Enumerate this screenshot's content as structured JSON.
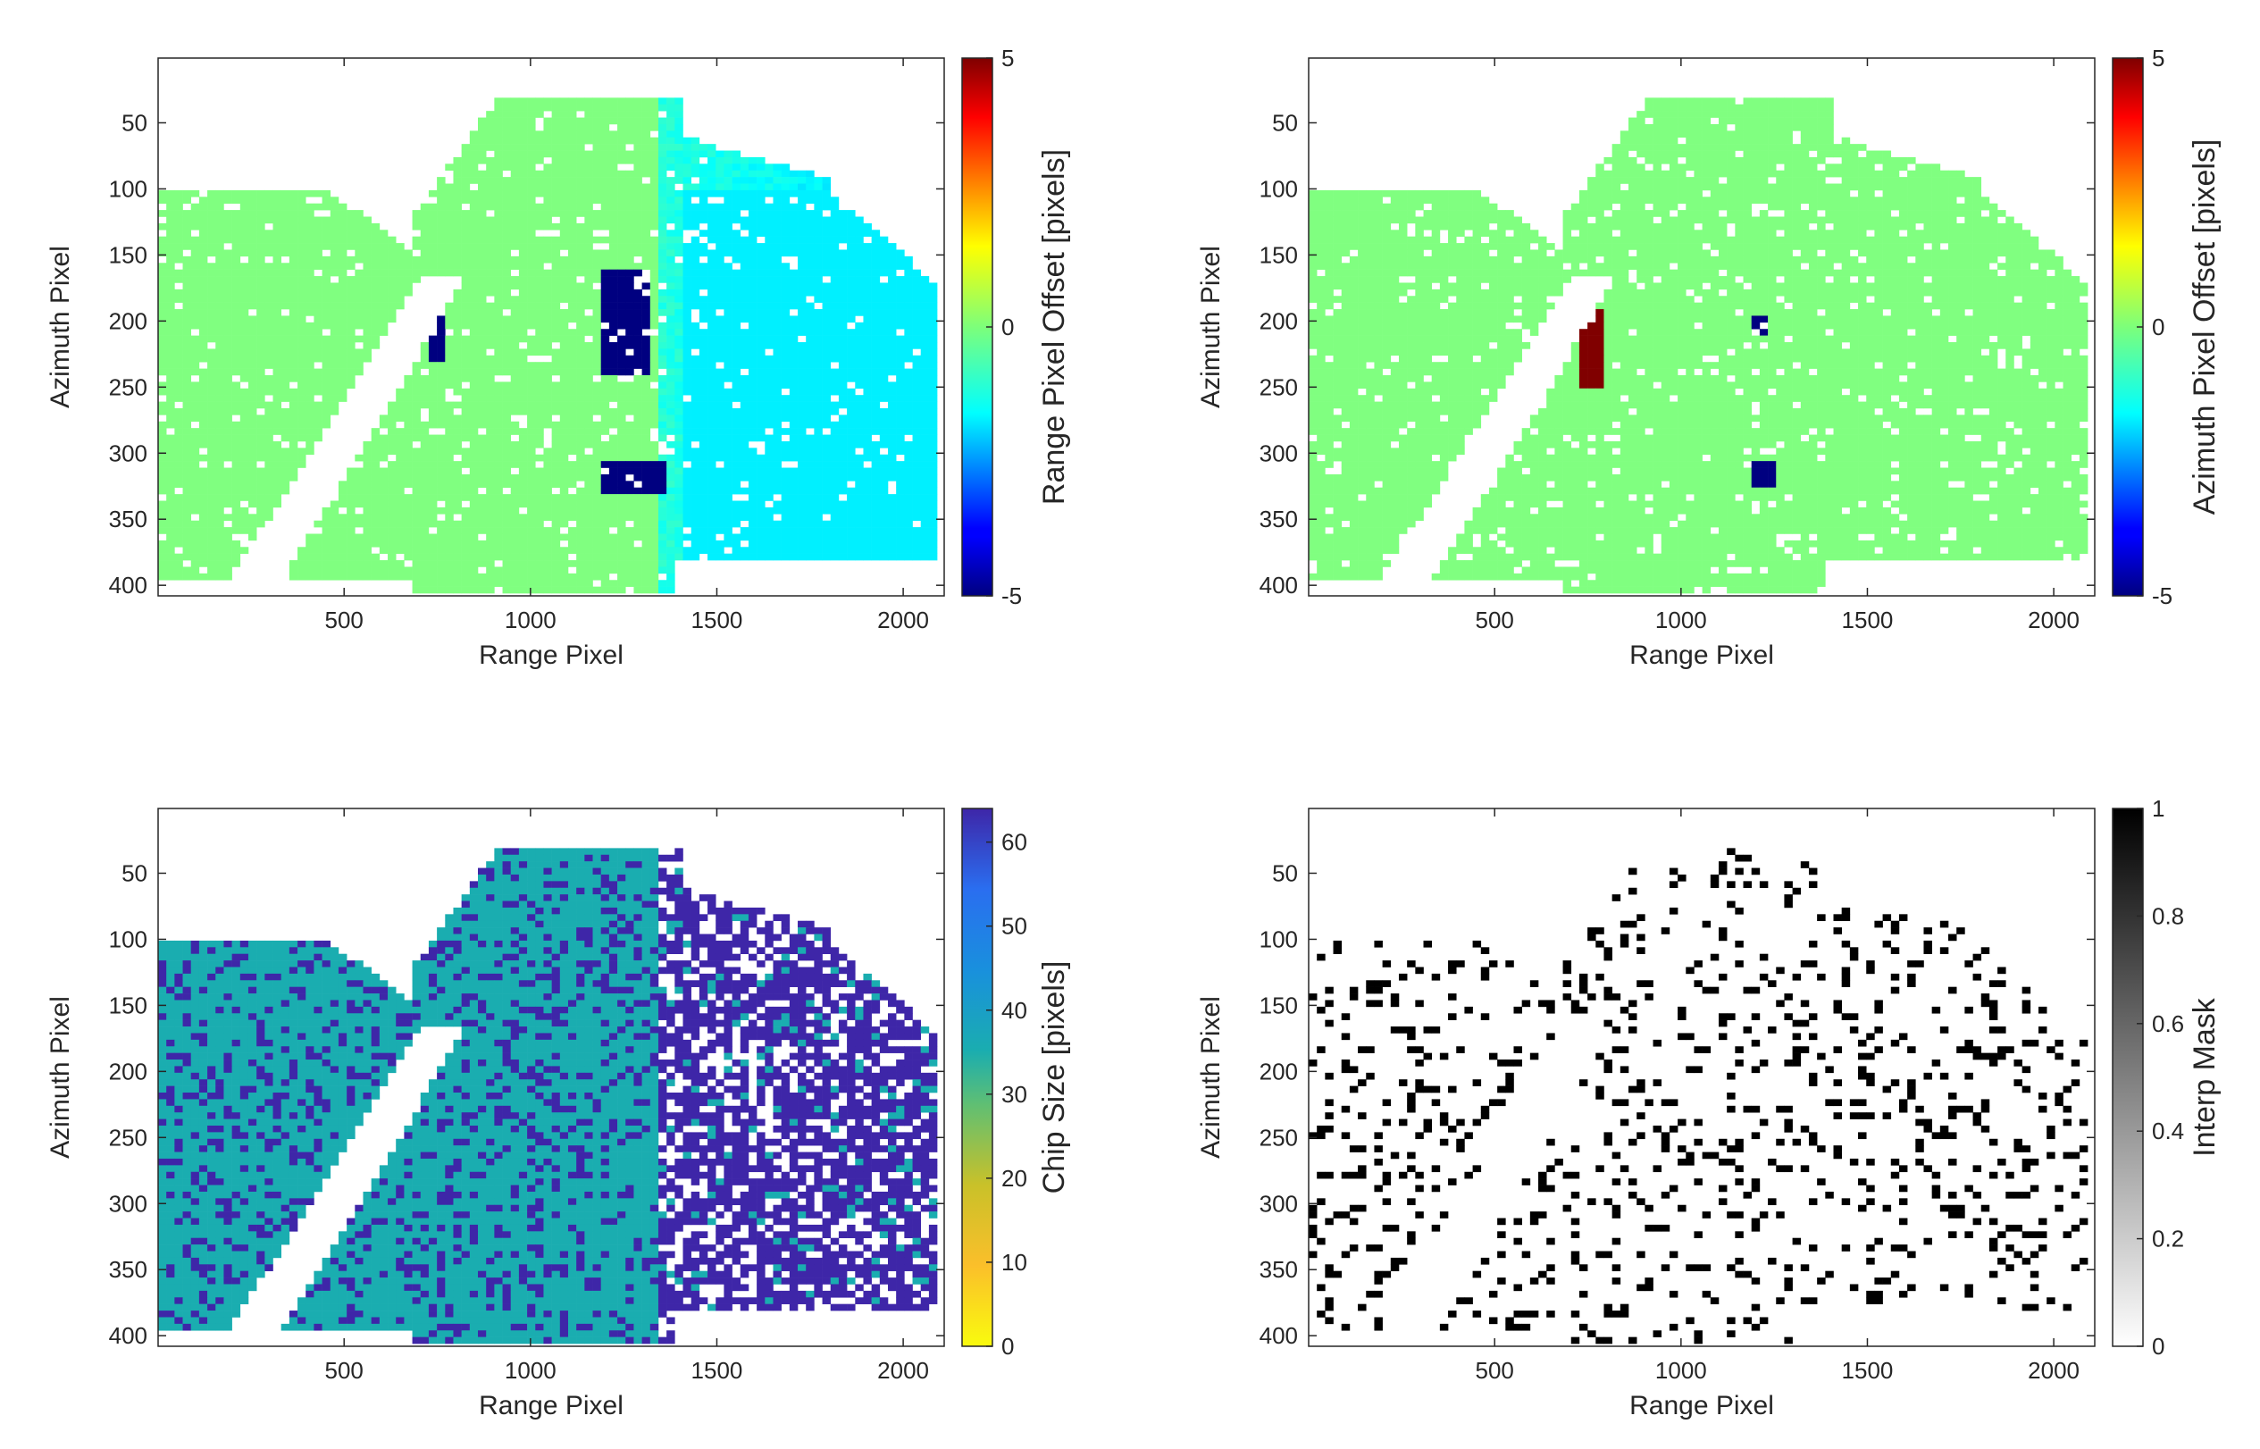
{
  "chart_data": [
    {
      "type": "heatmap",
      "title": "",
      "xlabel": "Range Pixel",
      "ylabel": "Azimuth Pixel",
      "xlim": [
        1,
        2110
      ],
      "ylim": [
        1,
        408
      ],
      "y_reversed": true,
      "xticks": [
        500,
        1000,
        1500,
        2000
      ],
      "yticks": [
        50,
        100,
        150,
        200,
        250,
        300,
        350,
        400
      ],
      "colormap": "jet",
      "colorbar": {
        "label": "Range Pixel Offset [pixels]",
        "min": -5,
        "max": 5,
        "ticks": [
          -5,
          0,
          5
        ]
      },
      "field": "range_offset",
      "features": [
        {
          "type": "blob",
          "x": [
            1180,
            1330
          ],
          "y": [
            160,
            240
          ],
          "value": -5
        },
        {
          "type": "blob",
          "x": [
            1200,
            1370
          ],
          "y": [
            305,
            330
          ],
          "value": -5
        },
        {
          "type": "blob",
          "x": [
            730,
            760
          ],
          "y": [
            180,
            230
          ],
          "value": -5
        },
        {
          "type": "region",
          "x": [
            1400,
            2110
          ],
          "y": [
            100,
            380
          ],
          "value": -1.4
        }
      ]
    },
    {
      "type": "heatmap",
      "title": "",
      "xlabel": "Range Pixel",
      "ylabel": "Azimuth Pixel",
      "xlim": [
        1,
        2110
      ],
      "ylim": [
        1,
        408
      ],
      "y_reversed": true,
      "xticks": [
        500,
        1000,
        1500,
        2000
      ],
      "yticks": [
        50,
        100,
        150,
        200,
        250,
        300,
        350,
        400
      ],
      "colormap": "jet",
      "colorbar": {
        "label": "Azimuth Pixel Offset [pixels]",
        "min": -5,
        "max": 5,
        "ticks": [
          -5,
          0,
          5
        ]
      },
      "field": "azimuth_offset",
      "features": [
        {
          "type": "blob",
          "x": [
            720,
            790
          ],
          "y": [
            190,
            250
          ],
          "value": 5
        },
        {
          "type": "blob",
          "x": [
            1180,
            1240
          ],
          "y": [
            195,
            210
          ],
          "value": -5
        },
        {
          "type": "blob",
          "x": [
            1200,
            1260
          ],
          "y": [
            305,
            325
          ],
          "value": -5
        }
      ]
    },
    {
      "type": "heatmap",
      "title": "",
      "xlabel": "Range Pixel",
      "ylabel": "Azimuth Pixel",
      "xlim": [
        1,
        2110
      ],
      "ylim": [
        1,
        408
      ],
      "y_reversed": true,
      "xticks": [
        500,
        1000,
        1500,
        2000
      ],
      "yticks": [
        50,
        100,
        150,
        200,
        250,
        300,
        350,
        400
      ],
      "colormap": "parula",
      "colorbar": {
        "label": "Chip Size [pixels]",
        "min": 0,
        "max": 64,
        "ticks": [
          0,
          10,
          20,
          30,
          40,
          50,
          60
        ]
      },
      "field": "chip_size",
      "values_present": [
        32,
        64
      ]
    },
    {
      "type": "heatmap",
      "title": "",
      "xlabel": "Range Pixel",
      "ylabel": "Azimuth Pixel",
      "xlim": [
        1,
        2110
      ],
      "ylim": [
        1,
        408
      ],
      "y_reversed": true,
      "xticks": [
        500,
        1000,
        1500,
        2000
      ],
      "yticks": [
        50,
        100,
        150,
        200,
        250,
        300,
        350,
        400
      ],
      "colormap": "gray-reversed",
      "colorbar": {
        "label": "Interp Mask",
        "min": 0,
        "max": 1,
        "ticks": [
          0,
          0.2,
          0.4,
          0.6,
          0.8,
          1
        ]
      },
      "field": "interp_mask",
      "values_present": [
        0,
        1
      ]
    }
  ]
}
